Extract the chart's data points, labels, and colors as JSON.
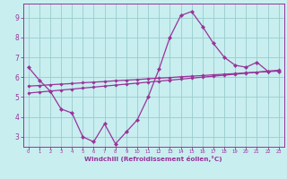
{
  "xlabel": "Windchill (Refroidissement éolien,°C)",
  "background_color": "#c8eef0",
  "line_color": "#993399",
  "grid_color": "#99cccc",
  "tick_color": "#993399",
  "label_color": "#993399",
  "x_data": [
    0,
    1,
    2,
    3,
    4,
    5,
    6,
    7,
    8,
    9,
    10,
    11,
    12,
    13,
    14,
    15,
    16,
    17,
    18,
    19,
    20,
    21,
    22,
    23
  ],
  "y_main": [
    6.5,
    5.85,
    5.3,
    4.4,
    4.2,
    3.0,
    2.75,
    3.65,
    2.65,
    3.25,
    3.85,
    5.0,
    6.4,
    8.0,
    9.1,
    9.3,
    8.55,
    7.7,
    7.0,
    6.6,
    6.5,
    6.75,
    6.3,
    6.3
  ],
  "y_trend1": [
    5.55,
    5.58,
    5.62,
    5.65,
    5.68,
    5.72,
    5.75,
    5.78,
    5.82,
    5.85,
    5.88,
    5.92,
    5.95,
    5.98,
    6.02,
    6.05,
    6.08,
    6.12,
    6.15,
    6.18,
    6.22,
    6.25,
    6.28,
    6.32
  ],
  "y_trend2": [
    5.2,
    5.25,
    5.3,
    5.35,
    5.4,
    5.45,
    5.5,
    5.55,
    5.6,
    5.65,
    5.7,
    5.75,
    5.8,
    5.85,
    5.9,
    5.95,
    6.0,
    6.05,
    6.1,
    6.15,
    6.2,
    6.25,
    6.3,
    6.35
  ],
  "ylim": [
    2.5,
    9.7
  ],
  "xlim": [
    -0.5,
    23.5
  ],
  "yticks": [
    3,
    4,
    5,
    6,
    7,
    8,
    9
  ],
  "xticks": [
    0,
    1,
    2,
    3,
    4,
    5,
    6,
    7,
    8,
    9,
    10,
    11,
    12,
    13,
    14,
    15,
    16,
    17,
    18,
    19,
    20,
    21,
    22,
    23
  ]
}
